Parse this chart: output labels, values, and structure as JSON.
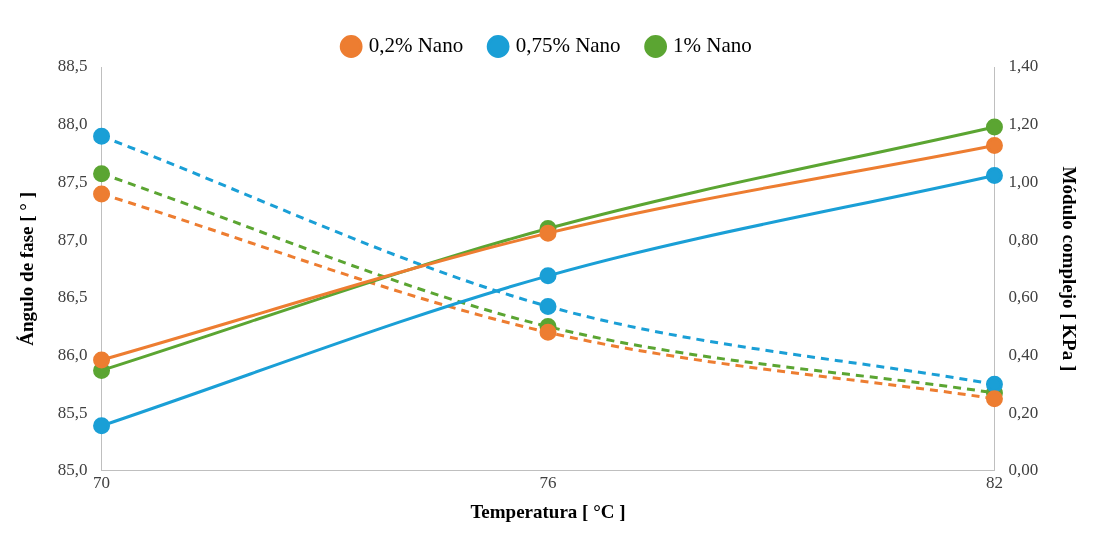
{
  "chart_data": {
    "type": "line",
    "xlabel": "Temperatura [ °C ]",
    "ylabel": "Ángulo de fase [ ° ]",
    "y2label": "Módulo complejo [ KPa ]",
    "categories": [
      "70",
      "76",
      "82"
    ],
    "series": [
      {
        "name": "0,2% Nano",
        "color": "#ed7d31",
        "values": [
          85.96,
          87.06,
          87.82
        ]
      },
      {
        "name": "0,75% Nano",
        "color": "#1a9fd6",
        "values": [
          85.39,
          86.69,
          87.56
        ]
      },
      {
        "name": "1% Nano",
        "color": "#5ba532",
        "values": [
          85.87,
          87.1,
          87.98
        ]
      },
      {
        "color": "#ed7d31",
        "values": [
          0.96,
          0.48,
          0.25
        ],
        "axis": "y2",
        "line_style": "dashed"
      },
      {
        "color": "#1a9fd6",
        "values": [
          1.16,
          0.57,
          0.3
        ],
        "axis": "y2",
        "line_style": "dashed"
      },
      {
        "color": "#5ba532",
        "values": [
          1.03,
          0.5,
          0.27
        ],
        "axis": "y2",
        "line_style": "dashed"
      }
    ],
    "ylim": [
      85,
      88.5
    ],
    "yticks": [
      {
        "value": 85,
        "label": "85,0"
      },
      {
        "value": 85.5,
        "label": "85,5"
      },
      {
        "value": 86,
        "label": "86,0"
      },
      {
        "value": 86.5,
        "label": "86,5"
      },
      {
        "value": 87,
        "label": "87,0"
      },
      {
        "value": 87.5,
        "label": "87,5"
      },
      {
        "value": 88,
        "label": "88,0"
      },
      {
        "value": 88.5,
        "label": "88,5"
      }
    ],
    "y2lim": [
      0,
      1.4
    ],
    "y2ticks": [
      {
        "value": 0,
        "label": "0,00"
      },
      {
        "value": 0.2,
        "label": "0,20"
      },
      {
        "value": 0.4,
        "label": "0,40"
      },
      {
        "value": 0.6,
        "label": "0,60"
      },
      {
        "value": 0.8,
        "label": "0,80"
      },
      {
        "value": 1,
        "label": "1,00"
      },
      {
        "value": 1.2,
        "label": "1,20"
      },
      {
        "value": 1.4,
        "label": "1,40"
      }
    ],
    "grid": false,
    "legend": "top",
    "marker": "circle"
  }
}
